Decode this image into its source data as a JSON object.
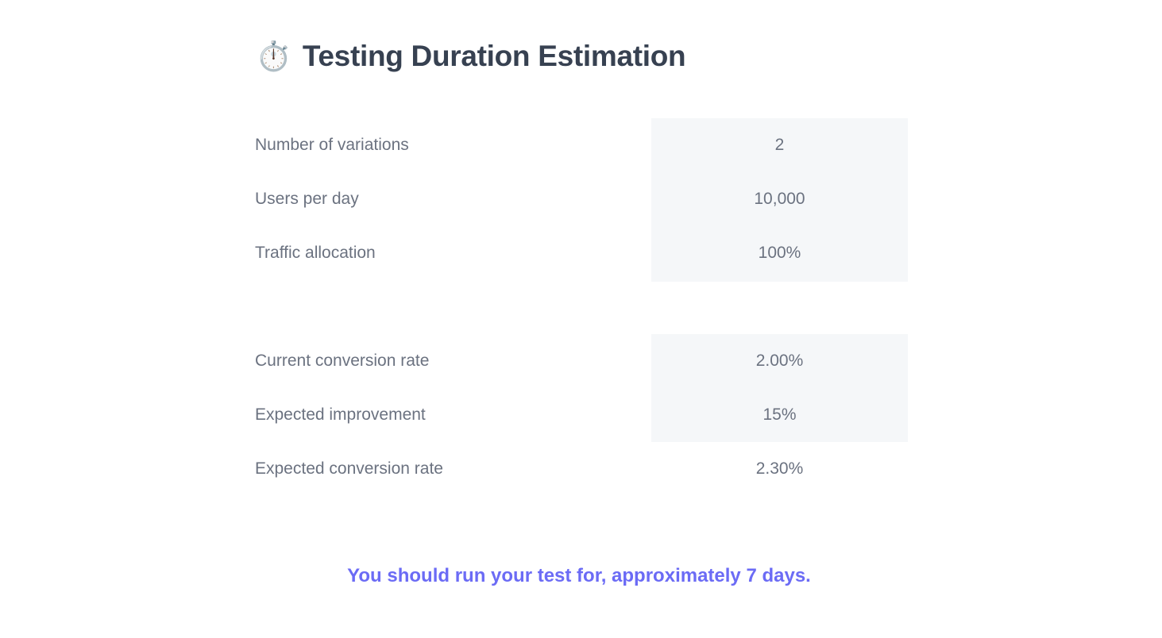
{
  "header": {
    "icon": "stopwatch-icon",
    "icon_glyph": "⏱️",
    "title": "Testing Duration Estimation"
  },
  "traffic": [
    {
      "label": "Number of variations",
      "value": "2"
    },
    {
      "label": "Users per day",
      "value": "10,000"
    },
    {
      "label": "Traffic allocation",
      "value": "100%"
    }
  ],
  "conversion": [
    {
      "label": "Current conversion rate",
      "value": "2.00%"
    },
    {
      "label": "Expected improvement",
      "value": "15%"
    },
    {
      "label": "Expected conversion rate",
      "value": "2.30%"
    }
  ],
  "result": "You should run your test for, approximately 7 days.",
  "colors": {
    "title": "#374151",
    "text": "#6b7280",
    "input_bg": "#f5f7f9",
    "accent": "#6b6bf5"
  }
}
